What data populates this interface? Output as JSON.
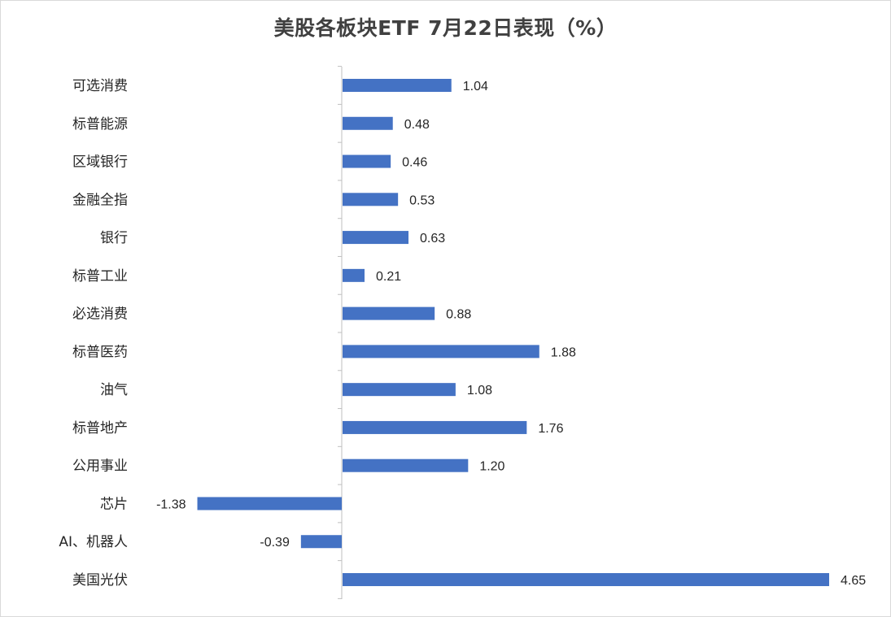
{
  "chart_data": {
    "type": "bar",
    "orientation": "horizontal",
    "title": "美股各板块ETF  7月22日表现（%）",
    "categories": [
      "可选消费",
      "标普能源",
      "区域银行",
      "金融全指",
      "银行",
      "标普工业",
      "必选消费",
      "标普医药",
      "油气",
      "标普地产",
      "公用事业",
      "芯片",
      "AI、机器人",
      "美国光伏"
    ],
    "values": [
      1.04,
      0.48,
      0.46,
      0.53,
      0.63,
      0.21,
      0.88,
      1.88,
      1.08,
      1.76,
      1.2,
      -1.38,
      -0.39,
      4.65
    ],
    "value_labels": [
      "1.04",
      "0.48",
      "0.46",
      "0.53",
      "0.63",
      "0.21",
      "0.88",
      "1.88",
      "1.08",
      "1.76",
      "1.20",
      "-1.38",
      "-0.39",
      "4.65"
    ],
    "xlim": [
      -1.38,
      4.65
    ],
    "grid": false,
    "bar_color": "#4472C4",
    "axis_color": "#bfbfbf"
  }
}
